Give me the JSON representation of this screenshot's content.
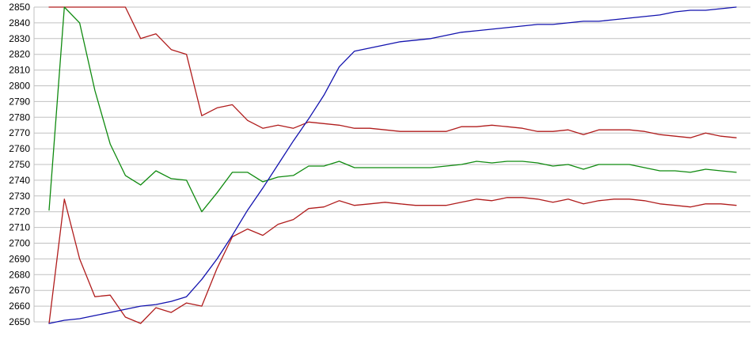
{
  "chart_data": {
    "type": "line",
    "title": "",
    "xlabel": "",
    "ylabel": "",
    "grid": true,
    "legend_position": "none",
    "background_color": "#ffffff",
    "gridline_color": "#c0c0c0",
    "axis_line_color": "#c0c0c0",
    "tick_label_color": "#000000",
    "x_axis": {
      "labels_visible": false,
      "point_count": 46
    },
    "y_axis": {
      "min": 2650,
      "max": 2850,
      "tick_step": 10,
      "tick_labels": [
        "2850",
        "2840",
        "2830",
        "2820",
        "2810",
        "2800",
        "2790",
        "2780",
        "2770",
        "2760",
        "2750",
        "2740",
        "2730",
        "2720",
        "2710",
        "2700",
        "2690",
        "2680",
        "2670",
        "2660",
        "2650"
      ]
    },
    "series": [
      {
        "name": "red-upper-line",
        "color": "#b01c1c",
        "values": [
          2850,
          2850,
          2850,
          2850,
          2850,
          2850,
          2830,
          2833,
          2823,
          2820,
          2781,
          2786,
          2788,
          2778,
          2773,
          2775,
          2773,
          2777,
          2776,
          2775,
          2773,
          2773,
          2772,
          2771,
          2771,
          2771,
          2771,
          2774,
          2774,
          2775,
          2774,
          2773,
          2771,
          2771,
          2772,
          2769,
          2772,
          2772,
          2772,
          2771,
          2769,
          2768,
          2767,
          2770,
          2768,
          2767
        ]
      },
      {
        "name": "red-lower-line",
        "color": "#b01c1c",
        "values": [
          2649,
          2728,
          2690,
          2666,
          2667,
          2653,
          2649,
          2659,
          2656,
          2662,
          2660,
          2684,
          2704,
          2709,
          2705,
          2712,
          2715,
          2722,
          2723,
          2727,
          2724,
          2725,
          2726,
          2725,
          2724,
          2724,
          2724,
          2726,
          2728,
          2727,
          2729,
          2729,
          2728,
          2726,
          2728,
          2725,
          2727,
          2728,
          2728,
          2727,
          2725,
          2724,
          2723,
          2725,
          2725,
          2724
        ]
      },
      {
        "name": "green-line",
        "color": "#0f8a0f",
        "values": [
          2721,
          2850,
          2840,
          2797,
          2763,
          2743,
          2737,
          2746,
          2741,
          2740,
          2720,
          2732,
          2745,
          2745,
          2739,
          2742,
          2743,
          2749,
          2749,
          2752,
          2748,
          2748,
          2748,
          2748,
          2748,
          2748,
          2749,
          2750,
          2752,
          2751,
          2752,
          2752,
          2751,
          2749,
          2750,
          2747,
          2750,
          2750,
          2750,
          2748,
          2746,
          2746,
          2745,
          2747,
          2746,
          2745
        ]
      },
      {
        "name": "blue-line",
        "color": "#1212ae",
        "values": [
          2649,
          2651,
          2652,
          2654,
          2656,
          2658,
          2660,
          2661,
          2663,
          2666,
          2677,
          2690,
          2705,
          2721,
          2735,
          2750,
          2765,
          2779,
          2794,
          2812,
          2822,
          2824,
          2826,
          2828,
          2829,
          2830,
          2832,
          2834,
          2835,
          2836,
          2837,
          2838,
          2839,
          2839,
          2840,
          2841,
          2841,
          2842,
          2843,
          2844,
          2845,
          2847,
          2848,
          2848,
          2849,
          2850
        ]
      }
    ]
  }
}
